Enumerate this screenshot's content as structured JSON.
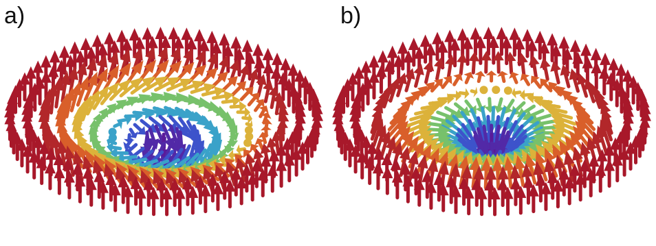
{
  "panels": [
    {
      "label": "a)",
      "texture": "bloch-skyrmion"
    },
    {
      "label": "b)",
      "texture": "neel-skyrmion"
    }
  ],
  "colors": {
    "background": "#ffffff",
    "up": "#a8182a",
    "orange": "#e8742a",
    "yellow": "#d8c840",
    "green": "#6cc070",
    "cyan": "#3aa8c8",
    "blue": "#3a58d0",
    "down": "#5a1a9a"
  }
}
